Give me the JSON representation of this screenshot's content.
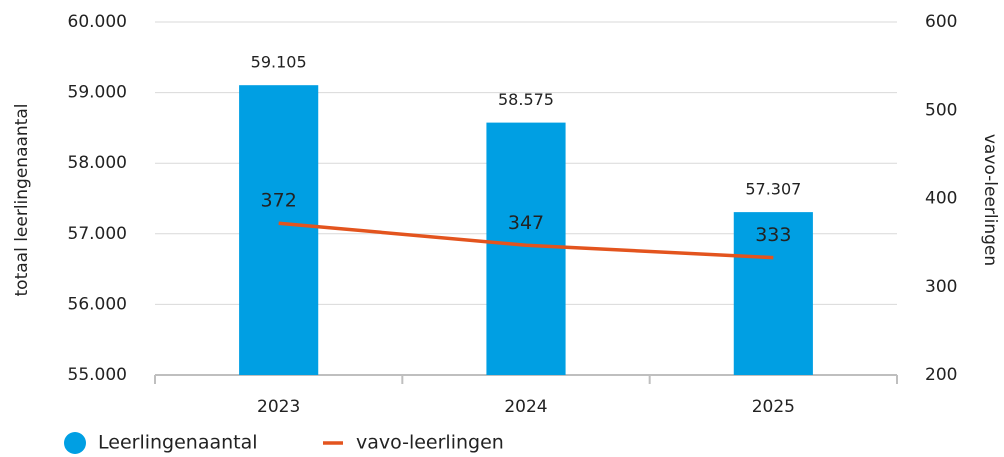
{
  "chart_data": {
    "type": "combo",
    "categories": [
      "2023",
      "2024",
      "2025"
    ],
    "ylabel": "totaal leerlingenaantal",
    "y2label": "vavo-leerlingen",
    "ylim": [
      55000,
      60000
    ],
    "yticks": [
      {
        "value": 55000,
        "label": "55.000"
      },
      {
        "value": 56000,
        "label": "56.000"
      },
      {
        "value": 57000,
        "label": "57.000"
      },
      {
        "value": 58000,
        "label": "58.000"
      },
      {
        "value": 59000,
        "label": "59.000"
      },
      {
        "value": 60000,
        "label": "60.000"
      }
    ],
    "y2lim": [
      200,
      600
    ],
    "y2ticks": [
      200,
      300,
      400,
      500,
      600
    ],
    "grid": true,
    "legend": "bottom-left",
    "series": [
      {
        "name": "Leerlingenaantal",
        "type": "bar",
        "color": "#009fe3",
        "values": [
          59105,
          58575,
          57307
        ],
        "value_labels": [
          "59.105",
          "58.575",
          "57.307"
        ]
      },
      {
        "name": "vavo-leerlingen",
        "type": "line",
        "axis": "y2",
        "color": "#e3541e",
        "values": [
          372,
          347,
          333
        ]
      }
    ]
  }
}
